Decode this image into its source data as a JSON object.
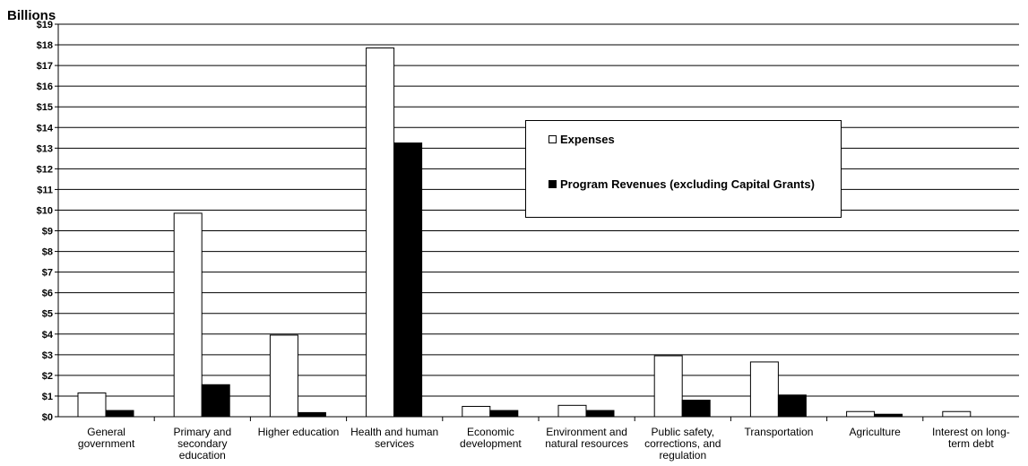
{
  "chart_data": {
    "type": "bar",
    "ylabel": "Billions",
    "ylim": [
      0,
      19
    ],
    "y_tick_step": 1,
    "y_tick_prefix": "$",
    "grid": true,
    "legend_position": "upper-right-inside",
    "categories": [
      "General government",
      "Primary and secondary education",
      "Higher education",
      "Health and human services",
      "Economic development",
      "Environment and natural resources",
      "Public safety, corrections, and regulation",
      "Transportation",
      "Agriculture",
      "Interest on long-term debt"
    ],
    "series": [
      {
        "name": "Expenses",
        "color": "#ffffff",
        "values": [
          1.15,
          9.85,
          3.95,
          17.85,
          0.5,
          0.55,
          2.95,
          2.65,
          0.25,
          0.25
        ]
      },
      {
        "name": "Program Revenues (excluding Capital Grants)",
        "color": "#000000",
        "values": [
          0.3,
          1.55,
          0.2,
          13.25,
          0.3,
          0.3,
          0.8,
          1.05,
          0.12,
          0
        ]
      }
    ]
  }
}
